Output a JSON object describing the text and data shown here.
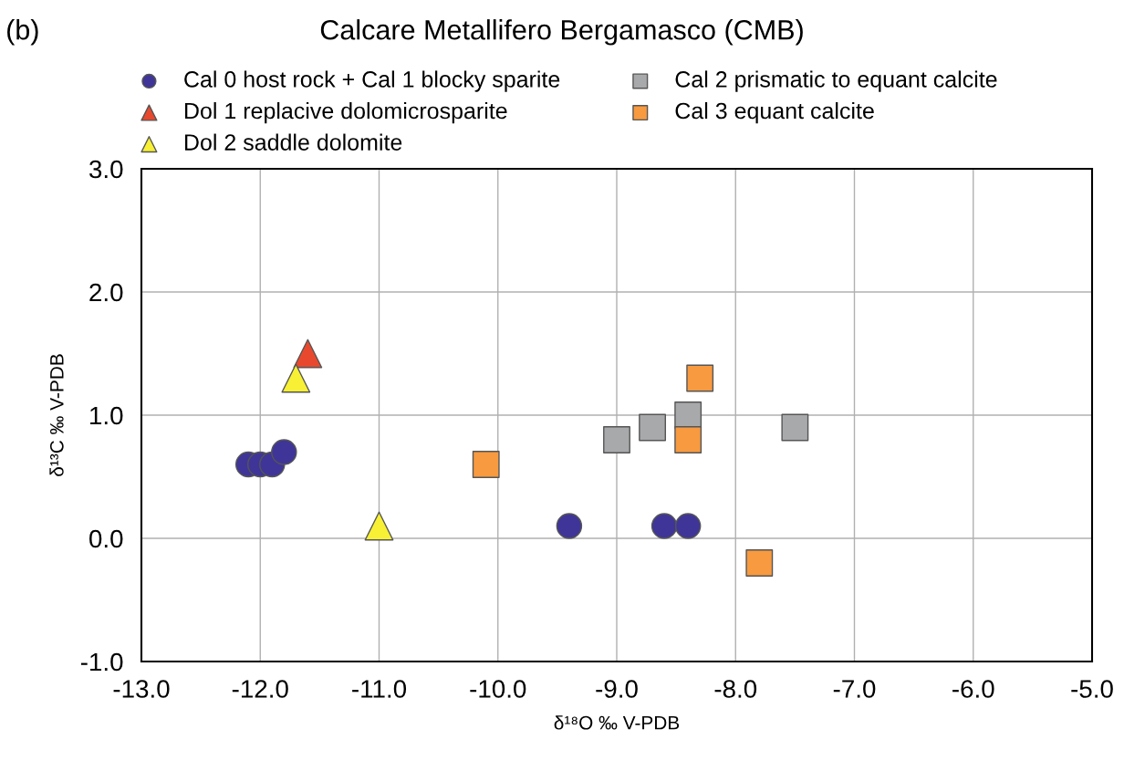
{
  "chart_data": {
    "type": "scatter",
    "title": "Calcare Metallifero Bergamasco (CMB)",
    "annotations": [
      "(b)"
    ],
    "xlabel": "δ¹⁸O ‰ V-PDB",
    "ylabel": "δ¹³C ‰ V-PDB",
    "xlim": [
      -13,
      -5
    ],
    "ylim": [
      -1,
      3
    ],
    "xticks": [
      {
        "value": -13,
        "label": "-13.0"
      },
      {
        "value": -12,
        "label": "-12.0"
      },
      {
        "value": -11,
        "label": "-11.0"
      },
      {
        "value": -10,
        "label": "-10.0"
      },
      {
        "value": -9,
        "label": "-9.0"
      },
      {
        "value": -8,
        "label": "-8.0"
      },
      {
        "value": -7,
        "label": "-7.0"
      },
      {
        "value": -6,
        "label": "-6.0"
      },
      {
        "value": -5,
        "label": "-5.0"
      }
    ],
    "yticks": [
      {
        "value": -1,
        "label": "-1.0"
      },
      {
        "value": 0,
        "label": "0.0"
      },
      {
        "value": 1,
        "label": "1.0"
      },
      {
        "value": 2,
        "label": "2.0"
      },
      {
        "value": 3,
        "label": "3.0"
      }
    ],
    "grid": true,
    "legend": "top",
    "series": [
      {
        "name": "Cal 0 host rock + Cal 1 blocky sparite",
        "color": "#3f3598",
        "marker": "circle",
        "x": [
          -12.1,
          -12.0,
          -11.9,
          -11.8,
          -9.4,
          -8.6,
          -8.4
        ],
        "values": [
          0.6,
          0.6,
          0.6,
          0.7,
          0.1,
          0.1,
          0.1
        ]
      },
      {
        "name": "Dol 1 replacive dolomicrosparite",
        "color": "#e8492e",
        "marker": "triangle",
        "x": [
          -11.6
        ],
        "values": [
          1.5
        ]
      },
      {
        "name": "Dol 2 saddle dolomite",
        "color": "#f7f035",
        "marker": "triangle",
        "x": [
          -11.7,
          -11.0
        ],
        "values": [
          1.3,
          0.1
        ]
      },
      {
        "name": "Cal 2 prismatic to equant calcite",
        "color": "#a8a9ab",
        "marker": "square",
        "x": [
          -9.0,
          -8.7,
          -8.4,
          -7.5
        ],
        "values": [
          0.8,
          0.9,
          1.0,
          0.9
        ]
      },
      {
        "name": "Cal 3 equant calcite",
        "color": "#f79a40",
        "marker": "square",
        "x": [
          -10.1,
          -8.3,
          -8.4,
          -7.8
        ],
        "values": [
          0.6,
          1.3,
          0.8,
          -0.2
        ]
      }
    ]
  }
}
